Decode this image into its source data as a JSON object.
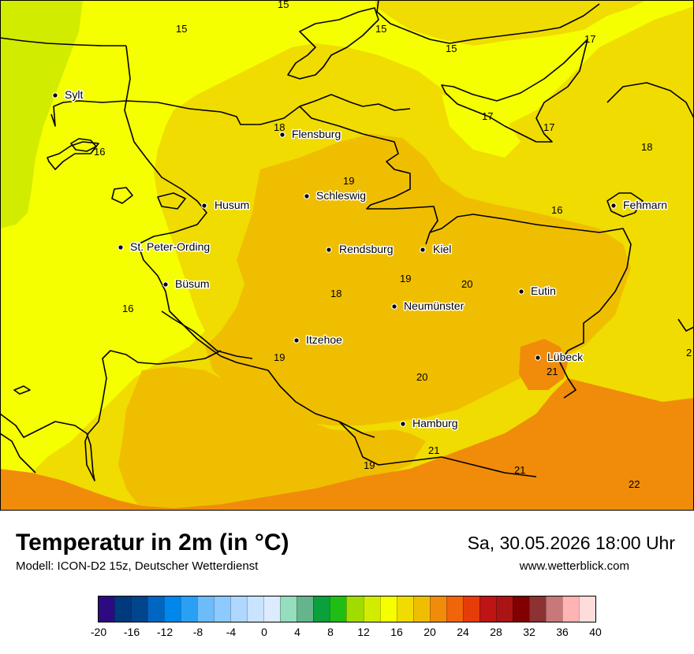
{
  "title": "Temperatur in 2m (in °C)",
  "subtitle": "Modell: ICON-D2 15z, Deutscher Wetterdienst",
  "datetime": "Sa, 30.05.2026 18:00 Uhr",
  "website": "www.wetterblick.com",
  "cities": [
    {
      "name": "Sylt",
      "icon": "city-dot-icon"
    },
    {
      "name": "Flensburg",
      "icon": "city-dot-icon"
    },
    {
      "name": "Schleswig",
      "icon": "city-dot-icon"
    },
    {
      "name": "Husum",
      "icon": "city-dot-icon"
    },
    {
      "name": "St. Peter-Ording",
      "icon": "city-dot-icon"
    },
    {
      "name": "Rendsburg",
      "icon": "city-dot-icon"
    },
    {
      "name": "Kiel",
      "icon": "city-dot-icon"
    },
    {
      "name": "Büsum",
      "icon": "city-dot-icon"
    },
    {
      "name": "Neumünster",
      "icon": "city-dot-icon"
    },
    {
      "name": "Eutin",
      "icon": "city-dot-icon"
    },
    {
      "name": "Fehmarn",
      "icon": "city-dot-icon"
    },
    {
      "name": "Itzehoe",
      "icon": "city-dot-icon"
    },
    {
      "name": "Lübeck",
      "icon": "city-dot-icon"
    },
    {
      "name": "Hamburg",
      "icon": "city-dot-icon"
    }
  ],
  "isoline_labels": [
    "15",
    "15",
    "15",
    "15",
    "17",
    "17",
    "17",
    "18",
    "18",
    "16",
    "16",
    "16",
    "19",
    "19",
    "18",
    "20",
    "19",
    "20",
    "21",
    "21",
    "21",
    "19",
    "22",
    "2"
  ],
  "legend": {
    "ticks": [
      "-20",
      "-16",
      "-12",
      "-8",
      "-4",
      "0",
      "4",
      "8",
      "12",
      "16",
      "20",
      "24",
      "28",
      "32",
      "36",
      "40"
    ],
    "colors": [
      "#2e0a82",
      "#003a7d",
      "#00468c",
      "#0066c2",
      "#0087ec",
      "#2aa0f5",
      "#6cbcfa",
      "#8ccaff",
      "#aed8ff",
      "#c8e4ff",
      "#dcebff",
      "#96dcbe",
      "#64b48c",
      "#0aa03c",
      "#1ebe14",
      "#a0dc00",
      "#d2ec00",
      "#f5ff00",
      "#f0dc00",
      "#f0be00",
      "#f08c0a",
      "#f0640a",
      "#e63c0a",
      "#be1414",
      "#aa1414",
      "#820000",
      "#8c3232",
      "#c87878",
      "#ffb4b4",
      "#ffdcdc"
    ]
  },
  "map_colors": {
    "lime": "#d2ec00",
    "yellow": "#f5ff00",
    "pale_orange": "#f0dc00",
    "orange": "#f0be00",
    "dark_orange": "#f08c0a"
  }
}
